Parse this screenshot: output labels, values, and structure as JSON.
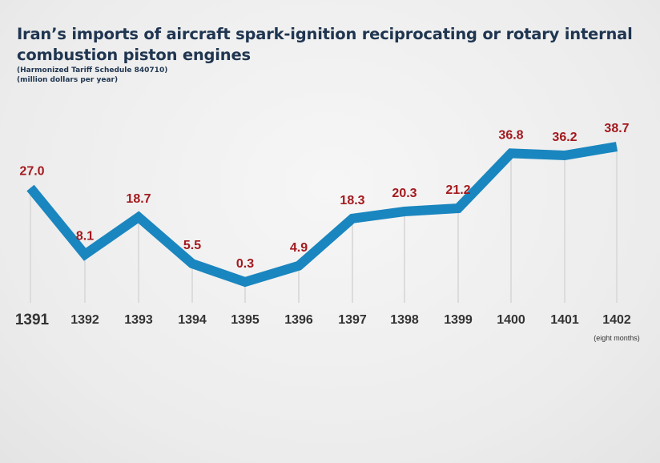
{
  "chart_data": {
    "type": "line",
    "title": "Iran’s imports of aircraft spark-ignition  reciprocating or rotary internal combustion piston engines",
    "subtitle": "(Harmonized Tariff Schedule 840710)",
    "unit": "(million dollars per year)",
    "categories": [
      "1391",
      "1392",
      "1393",
      "1394",
      "1395",
      "1396",
      "1397",
      "1398",
      "1399",
      "1400",
      "1401",
      "1402"
    ],
    "category_note": {
      "1402": "(eight months)"
    },
    "values": [
      27.0,
      8.1,
      18.7,
      5.5,
      0.3,
      4.9,
      18.3,
      20.3,
      21.2,
      36.8,
      36.2,
      38.7
    ],
    "value_labels": [
      "27.0",
      "8.1",
      "18.7",
      "5.5",
      "0.3",
      "4.9",
      "18.3",
      "20.3",
      "21.2",
      "36.8",
      "36.2",
      "38.7"
    ],
    "grid": false,
    "colors": {
      "line": "#1a86bf",
      "labels": "#a3191e",
      "title": "#1f3550",
      "ticks": "#333333"
    }
  }
}
